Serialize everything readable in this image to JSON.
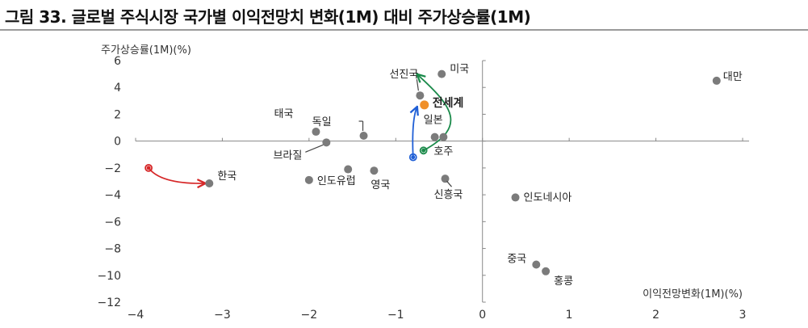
{
  "title": "그림 33. 글로벌 주식시장 국가별 이익전망치 변화(1M) 대비 주가상승률(1M)",
  "chart_data": {
    "type": "scatter",
    "title": "그림 33. 글로벌 주식시장 국가별 이익전망치 변화(1M) 대비 주가상승률(1M)",
    "xlabel": "이익전망변화(1M)(%)",
    "ylabel": "주가상승률(1M)(%)",
    "xlim": [
      -4,
      3
    ],
    "ylim": [
      -12,
      6
    ],
    "x_ticks": [
      "-4",
      "-3",
      "-2",
      "-1",
      "0",
      "1",
      "2",
      "3"
    ],
    "y_ticks": [
      "6",
      "4",
      "2",
      "0",
      "-2",
      "-4",
      "-6",
      "-8",
      "-10",
      "-12"
    ],
    "points": [
      {
        "label": "대만",
        "x": 2.7,
        "y": 4.5
      },
      {
        "label": "미국",
        "x": -0.47,
        "y": 5.0
      },
      {
        "label": "선진국",
        "x": -0.72,
        "y": 3.4
      },
      {
        "label": "전세계",
        "x": -0.67,
        "y": 2.7,
        "highlight": true
      },
      {
        "label": "일본",
        "x": -0.55,
        "y": 0.3
      },
      {
        "label": "호주",
        "x": -0.45,
        "y": 0.3
      },
      {
        "label": "태국",
        "x": -1.92,
        "y": 0.7
      },
      {
        "label": "독일",
        "x": -1.37,
        "y": 0.4
      },
      {
        "label": "브라질",
        "x": -1.8,
        "y": -0.1
      },
      {
        "label": "인도유럽",
        "x": -2.0,
        "y": -2.9
      },
      {
        "label": "",
        "x": -1.55,
        "y": -2.1
      },
      {
        "label": "영국",
        "x": -1.25,
        "y": -2.2
      },
      {
        "label": "신흥국",
        "x": -0.43,
        "y": -2.8
      },
      {
        "label": "한국",
        "x": -3.15,
        "y": -3.15
      },
      {
        "label": "인도네시아",
        "x": 0.38,
        "y": -4.2
      },
      {
        "label": "중국",
        "x": 0.62,
        "y": -9.2
      },
      {
        "label": "홍콩",
        "x": 0.73,
        "y": -9.7
      }
    ],
    "trails": [
      {
        "name": "한국",
        "color": "#d62728",
        "from": {
          "x": -3.85,
          "y": -2.0
        },
        "to": {
          "x": -3.15,
          "y": -3.15
        }
      },
      {
        "name": "전세계",
        "color": "#1f5fd6",
        "from": {
          "x": -0.8,
          "y": -1.2
        },
        "to": {
          "x": -0.72,
          "y": 2.5
        }
      },
      {
        "name": "미국",
        "color": "#1a8a4a",
        "from": {
          "x": -0.68,
          "y": -0.7
        },
        "to": {
          "x": -0.58,
          "y": 4.7
        }
      }
    ]
  }
}
